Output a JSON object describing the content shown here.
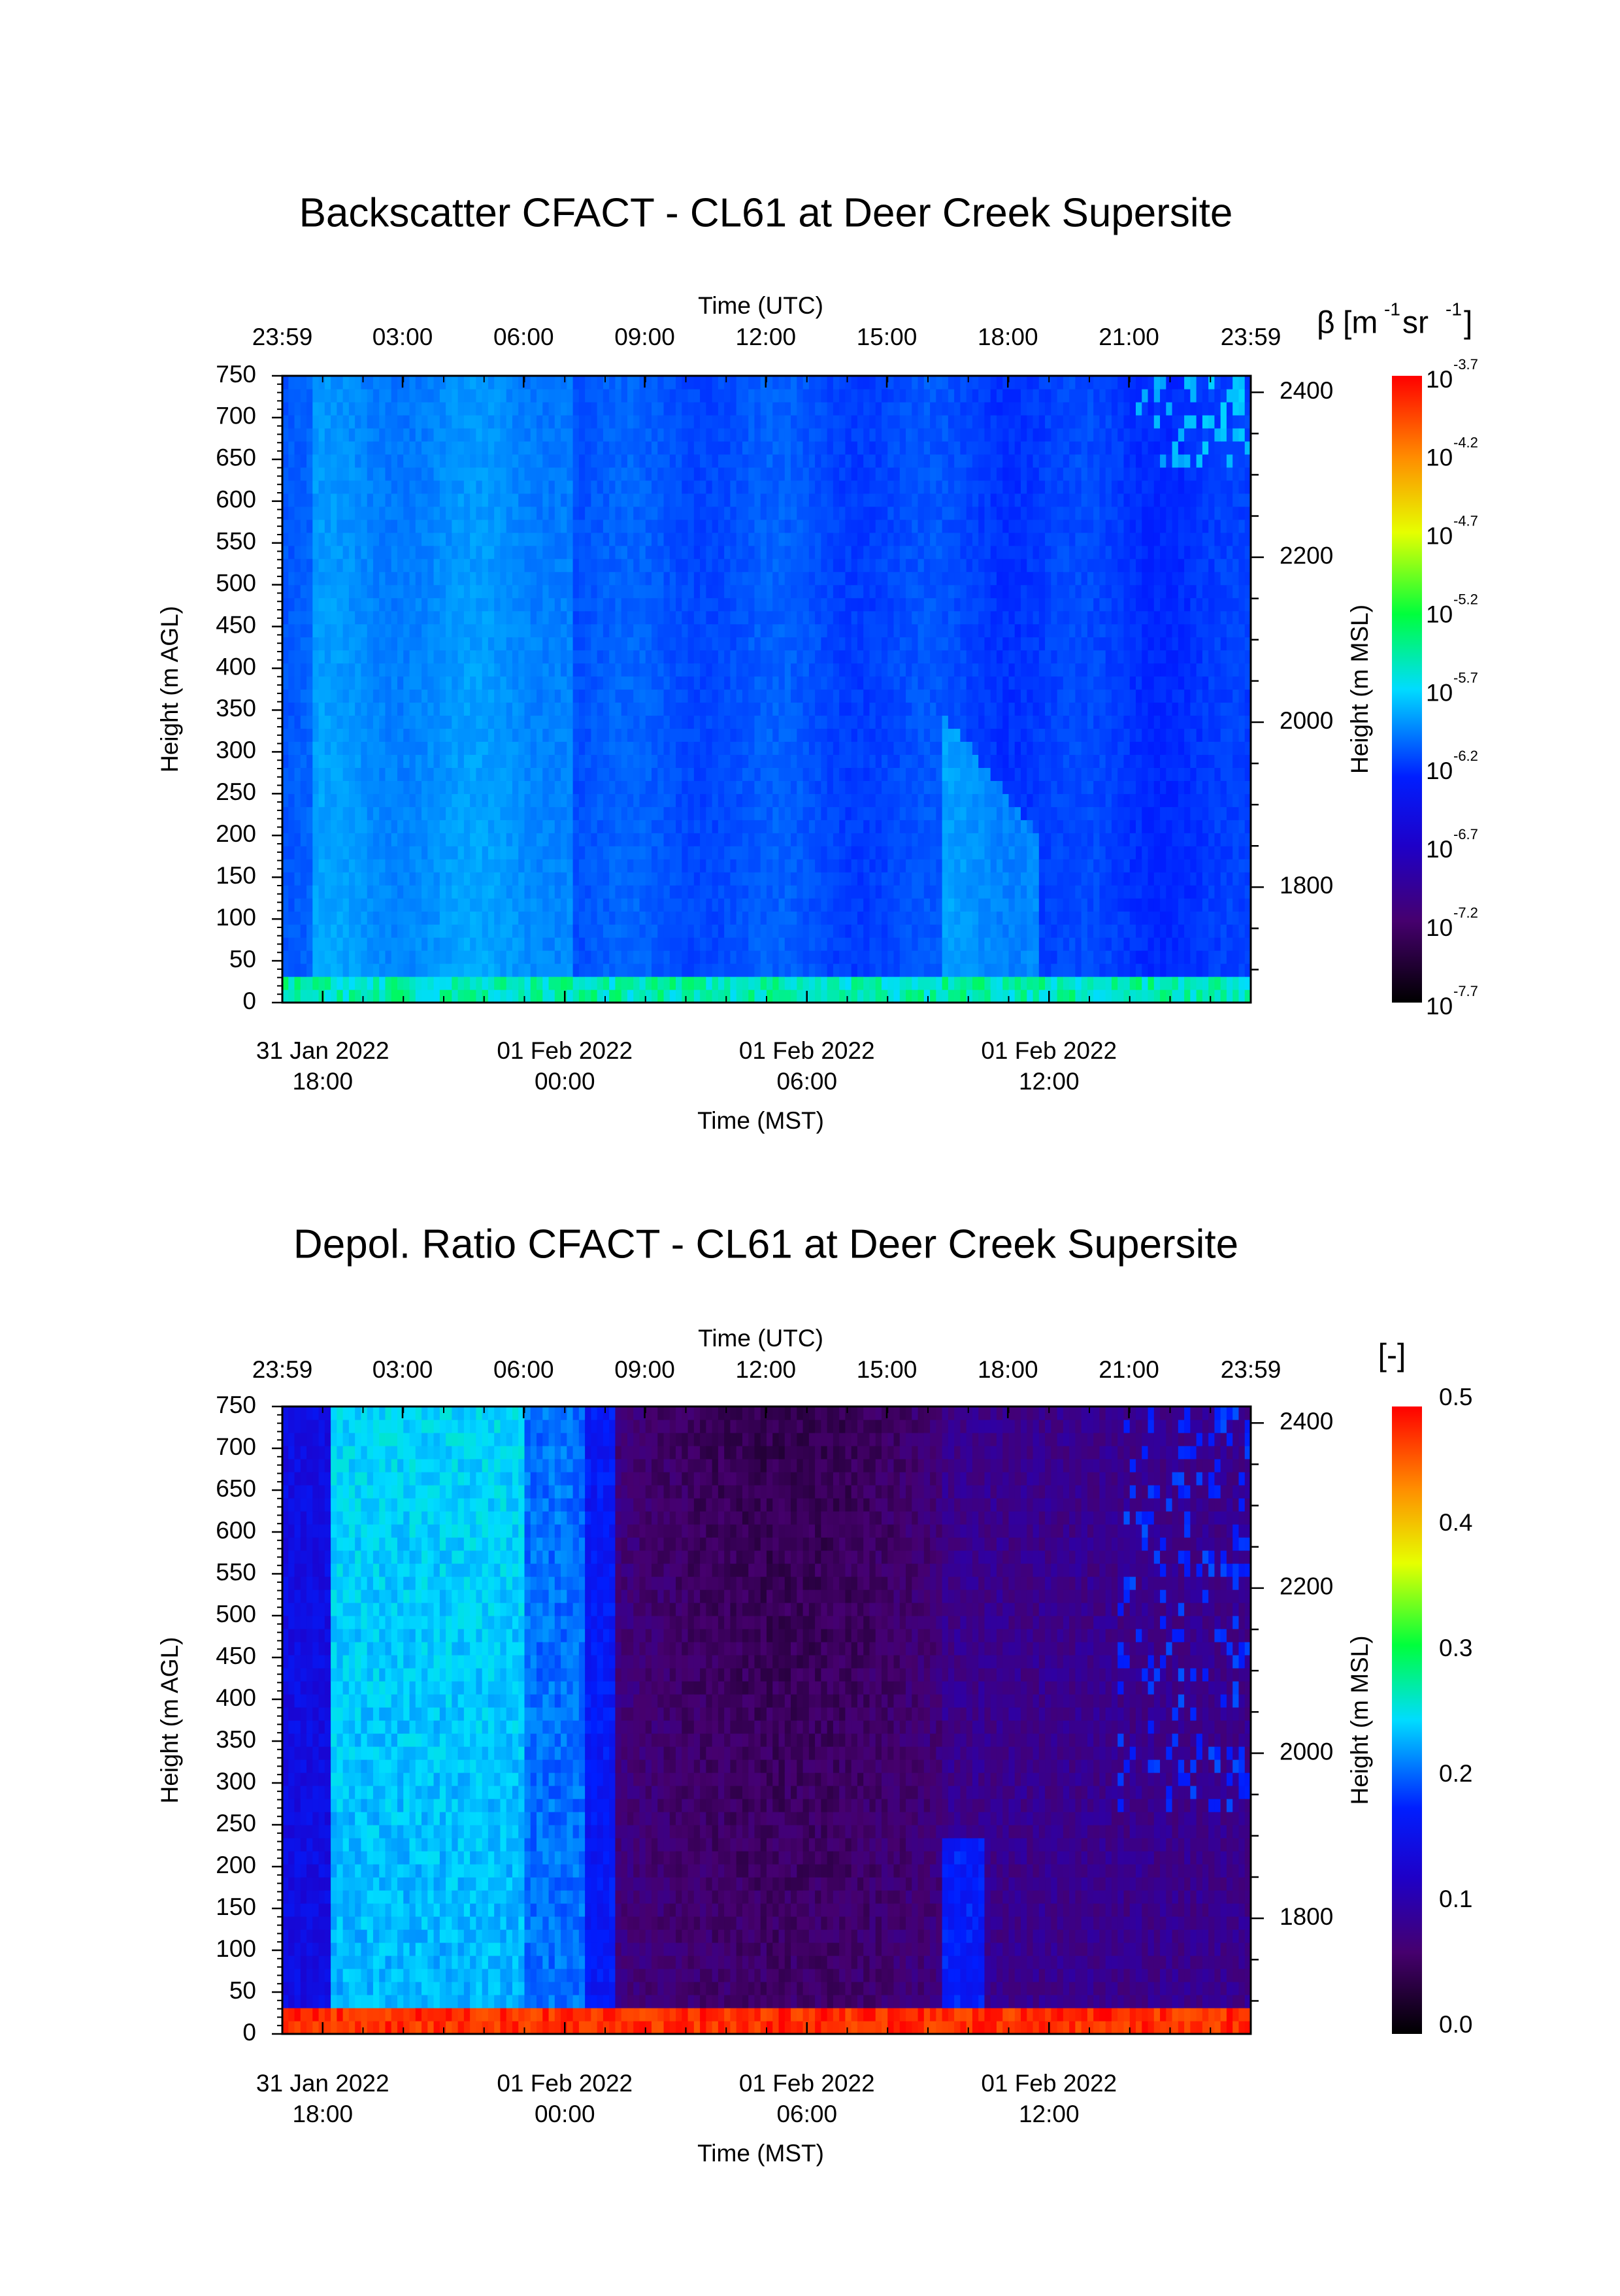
{
  "chart_data": [
    {
      "type": "heatmap",
      "title": "Backscatter CFACT - CL61 at Deer Creek Supersite",
      "top_axis": {
        "label": "Time (UTC)",
        "ticks": [
          "23:59",
          "03:00",
          "06:00",
          "09:00",
          "12:00",
          "15:00",
          "18:00",
          "21:00",
          "23:59"
        ]
      },
      "bottom_axis": {
        "label": "Time (MST)",
        "ticks": [
          {
            "date": "31 Jan 2022",
            "time": "18:00"
          },
          {
            "date": "01 Feb 2022",
            "time": "00:00"
          },
          {
            "date": "01 Feb 2022",
            "time": "06:00"
          },
          {
            "date": "01 Feb 2022",
            "time": "12:00"
          }
        ]
      },
      "left_axis": {
        "label": "Height (m AGL)",
        "ylim": [
          0,
          750
        ],
        "ticks": [
          "0",
          "50",
          "100",
          "150",
          "200",
          "250",
          "300",
          "350",
          "400",
          "450",
          "500",
          "550",
          "600",
          "650",
          "700",
          "750"
        ]
      },
      "right_axis": {
        "label": "Height (m MSL)",
        "ticks": [
          "1800",
          "2000",
          "2200",
          "2400"
        ]
      },
      "colorbar": {
        "label_symbol": "β",
        "label_unit_parts": [
          "[m",
          "-1",
          " sr",
          "-1",
          "]"
        ],
        "scale": "log",
        "ticks": [
          {
            "base": "10",
            "exp": "-3.7"
          },
          {
            "base": "10",
            "exp": "-4.2"
          },
          {
            "base": "10",
            "exp": "-4.7"
          },
          {
            "base": "10",
            "exp": "-5.2"
          },
          {
            "base": "10",
            "exp": "-5.7"
          },
          {
            "base": "10",
            "exp": "-6.2"
          },
          {
            "base": "10",
            "exp": "-6.7"
          },
          {
            "base": "10",
            "exp": "-7.2"
          },
          {
            "base": "10",
            "exp": "-7.7"
          }
        ],
        "colors": [
          "#ff0000",
          "#ff7f00",
          "#ffff00",
          "#00ff00",
          "#00ffff",
          "#0000ff",
          "#5a0096",
          "#000000"
        ]
      }
    },
    {
      "type": "heatmap",
      "title": "Depol. Ratio CFACT - CL61 at Deer Creek Supersite",
      "top_axis": {
        "label": "Time (UTC)",
        "ticks": [
          "23:59",
          "03:00",
          "06:00",
          "09:00",
          "12:00",
          "15:00",
          "18:00",
          "21:00",
          "23:59"
        ]
      },
      "bottom_axis": {
        "label": "Time (MST)",
        "ticks": [
          {
            "date": "31 Jan 2022",
            "time": "18:00"
          },
          {
            "date": "01 Feb 2022",
            "time": "00:00"
          },
          {
            "date": "01 Feb 2022",
            "time": "06:00"
          },
          {
            "date": "01 Feb 2022",
            "time": "12:00"
          }
        ]
      },
      "left_axis": {
        "label": "Height (m AGL)",
        "ylim": [
          0,
          750
        ],
        "ticks": [
          "0",
          "50",
          "100",
          "150",
          "200",
          "250",
          "300",
          "350",
          "400",
          "450",
          "500",
          "550",
          "600",
          "650",
          "700",
          "750"
        ]
      },
      "right_axis": {
        "label": "Height (m MSL)",
        "ticks": [
          "1800",
          "2000",
          "2200",
          "2400"
        ]
      },
      "colorbar": {
        "label": "[-]",
        "scale": "linear",
        "range": [
          0.0,
          0.5
        ],
        "ticks": [
          "0.5",
          "0.4",
          "0.3",
          "0.2",
          "0.1",
          "0.0"
        ],
        "colors": [
          "#ff0000",
          "#ff7f00",
          "#ffff00",
          "#00ff00",
          "#00ffff",
          "#0000ff",
          "#5a0096",
          "#000000"
        ]
      }
    }
  ]
}
